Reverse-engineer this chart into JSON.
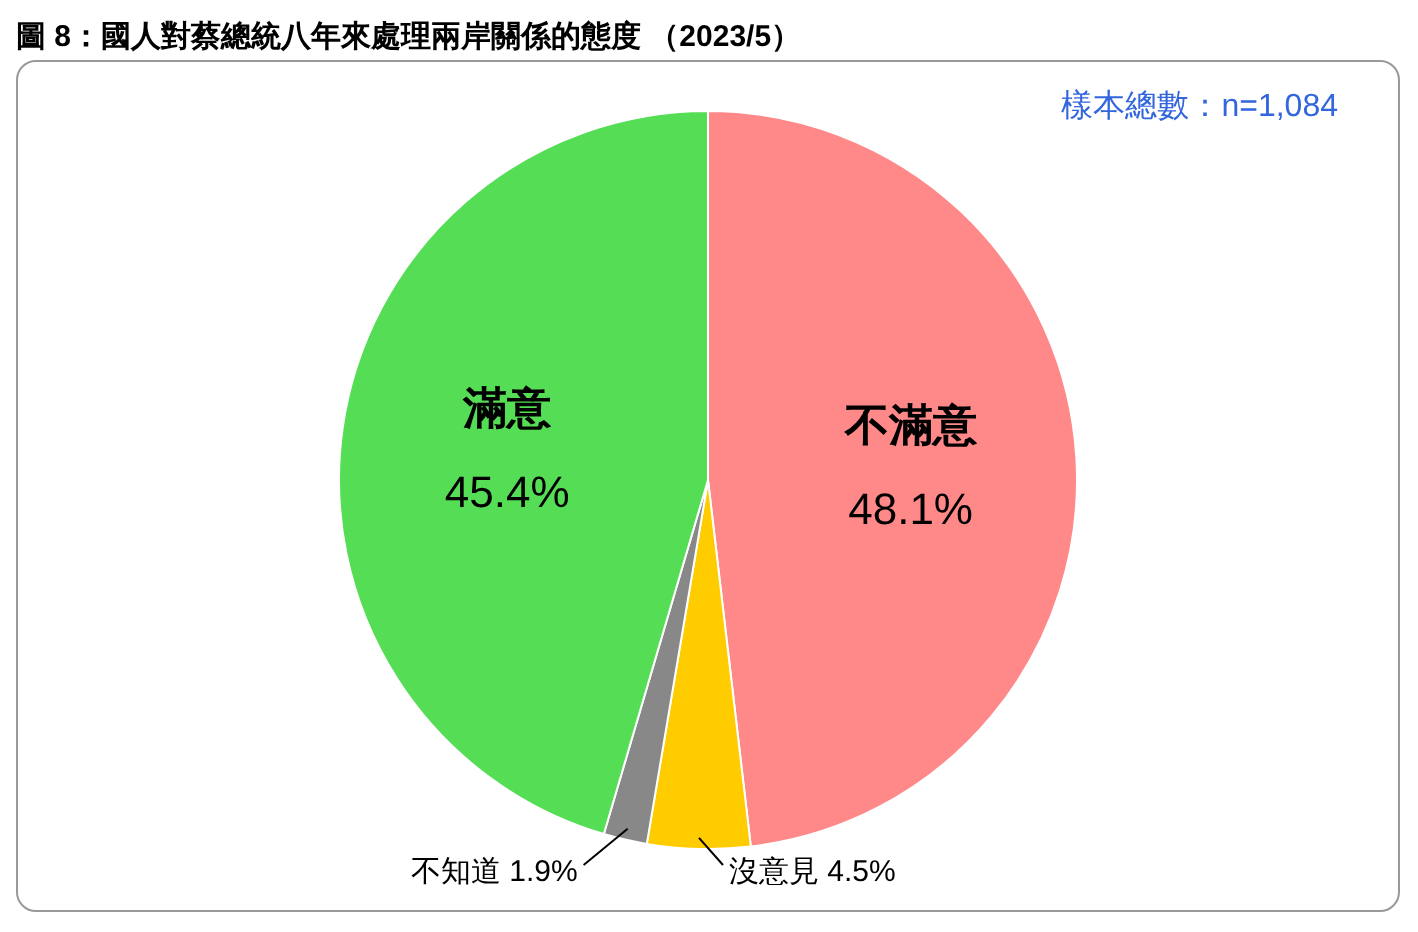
{
  "chart_data": {
    "type": "pie",
    "title": "圖 8：國人對蔡總統八年來處理兩岸關係的態度 （2023/5）",
    "categories": [
      "不滿意",
      "沒意見",
      "不知道",
      "滿意"
    ],
    "values": [
      48.1,
      4.5,
      1.9,
      45.4
    ],
    "value_labels": [
      "48.1%",
      "4.5%",
      "1.9%",
      "45.4%"
    ],
    "colors": [
      "#ff8888",
      "#ffcc00",
      "#888888",
      "#55dd55"
    ],
    "annotations": [
      "樣本總數：n=1,084"
    ],
    "legend": false
  }
}
